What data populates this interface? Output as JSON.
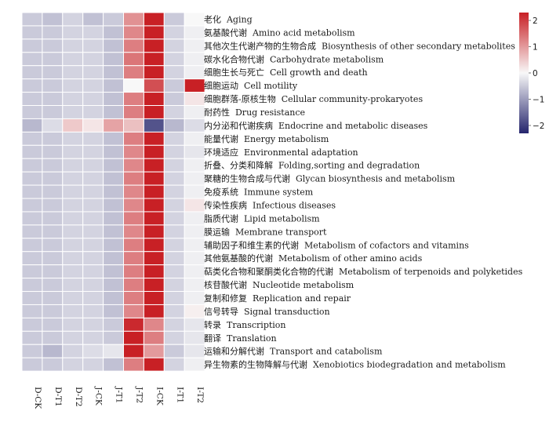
{
  "chart_data": {
    "type": "heatmap",
    "columns": [
      "D-CK",
      "D-T1",
      "D-T2",
      "J-CK",
      "J-T1",
      "J-T2",
      "I-CK",
      "I-T1",
      "I-T2"
    ],
    "rows": [
      "老化  Aging",
      "氨基酸代谢  Amino acid metabolism",
      "其他次生代谢产物的生物合成  Biosynthesis of other secondary metabolites",
      "碳水化合物代谢  Carbohydrate metabolism",
      "细胞生长与死亡  Cell growth and death",
      "细胞运动  Cell motility",
      "细胞群落-原核生物  Cellular community-prokaryotes",
      "耐药性  Drug resistance",
      "内分泌和代谢疾病  Endocrine and metabolic diseases",
      "能量代谢  Energy metabolism",
      "环境适应  Environmental adaptation",
      "折叠、分类和降解  Folding,sorting and degradation",
      "聚糖的生物合成与代谢  Glycan biosynthesis and metabolism",
      "免疫系统  Immune system",
      "传染性疾病  Infectious diseases",
      "脂质代谢  Lipid metabolism",
      "膜运输  Membrane transport",
      "辅助因子和维生素的代谢  Metabolism of cofactors and vitamins",
      "其他氨基酸的代谢  Metabolism of other amino acids",
      "萜类化合物和聚酮类化合物的代谢  Metabolism of terpenoids and polyketides",
      "核苷酸代谢  Nucleotide metabolism",
      "复制和修复  Replication and repair",
      "信号转导  Signal transduction",
      "转录  Transcription",
      "翻译  Translation",
      "运输和分解代谢  Transport and catabolism",
      "异生物素的生物降解与代谢  Xenobiotics biodegradation and metabolism"
    ],
    "values": [
      [
        -0.5,
        -0.6,
        -0.4,
        -0.6,
        -0.5,
        1.1,
        2.5,
        -0.5,
        0.0
      ],
      [
        -0.5,
        -0.5,
        -0.4,
        -0.4,
        -0.6,
        1.2,
        2.5,
        -0.4,
        -0.1
      ],
      [
        -0.5,
        -0.5,
        -0.4,
        -0.4,
        -0.6,
        1.3,
        2.5,
        -0.4,
        -0.1
      ],
      [
        -0.5,
        -0.5,
        -0.4,
        -0.4,
        -0.6,
        1.4,
        2.5,
        -0.4,
        -0.1
      ],
      [
        -0.5,
        -0.5,
        -0.4,
        -0.4,
        -0.6,
        1.3,
        2.5,
        -0.4,
        -0.1
      ],
      [
        -0.5,
        -0.5,
        -0.4,
        -0.4,
        -0.6,
        0.0,
        1.8,
        -0.5,
        2.4
      ],
      [
        -0.5,
        -0.5,
        -0.4,
        -0.4,
        -0.6,
        1.3,
        2.5,
        -0.5,
        0.2
      ],
      [
        -0.5,
        -0.5,
        -0.4,
        -0.4,
        -0.6,
        1.3,
        2.5,
        -0.4,
        -0.1
      ],
      [
        -0.7,
        -0.3,
        0.5,
        0.2,
        0.9,
        0.6,
        -1.8,
        -0.7,
        -0.3
      ],
      [
        -0.5,
        -0.5,
        -0.4,
        -0.4,
        -0.6,
        1.3,
        2.5,
        -0.4,
        -0.1
      ],
      [
        -0.5,
        -0.5,
        -0.4,
        -0.4,
        -0.6,
        1.2,
        2.5,
        -0.4,
        -0.2
      ],
      [
        -0.5,
        -0.5,
        -0.4,
        -0.4,
        -0.6,
        1.2,
        2.5,
        -0.4,
        -0.1
      ],
      [
        -0.5,
        -0.5,
        -0.4,
        -0.4,
        -0.6,
        1.3,
        2.5,
        -0.4,
        -0.1
      ],
      [
        -0.5,
        -0.5,
        -0.4,
        -0.4,
        -0.6,
        1.2,
        2.5,
        -0.4,
        -0.1
      ],
      [
        -0.5,
        -0.5,
        -0.4,
        -0.4,
        -0.6,
        1.2,
        2.5,
        -0.4,
        0.2
      ],
      [
        -0.5,
        -0.5,
        -0.4,
        -0.4,
        -0.6,
        1.3,
        2.5,
        -0.4,
        -0.1
      ],
      [
        -0.5,
        -0.5,
        -0.4,
        -0.4,
        -0.6,
        1.2,
        2.5,
        -0.4,
        -0.1
      ],
      [
        -0.5,
        -0.5,
        -0.4,
        -0.4,
        -0.6,
        1.3,
        2.5,
        -0.4,
        -0.1
      ],
      [
        -0.5,
        -0.5,
        -0.4,
        -0.4,
        -0.6,
        1.3,
        2.5,
        -0.4,
        -0.1
      ],
      [
        -0.5,
        -0.5,
        -0.4,
        -0.4,
        -0.6,
        1.3,
        2.5,
        -0.4,
        -0.1
      ],
      [
        -0.5,
        -0.5,
        -0.4,
        -0.4,
        -0.6,
        1.3,
        2.5,
        -0.4,
        -0.1
      ],
      [
        -0.5,
        -0.5,
        -0.4,
        -0.4,
        -0.6,
        1.3,
        2.5,
        -0.4,
        -0.1
      ],
      [
        -0.5,
        -0.5,
        -0.4,
        -0.4,
        -0.6,
        1.2,
        2.5,
        -0.4,
        0.1
      ],
      [
        -0.5,
        -0.5,
        -0.4,
        -0.4,
        -0.5,
        2.2,
        1.2,
        -0.4,
        -0.2
      ],
      [
        -0.5,
        -0.5,
        -0.4,
        -0.4,
        -0.5,
        2.3,
        1.3,
        -0.4,
        -0.2
      ],
      [
        -0.5,
        -0.7,
        -0.4,
        -0.3,
        -0.2,
        2.3,
        1.0,
        -0.5,
        -0.2
      ],
      [
        -0.5,
        -0.5,
        -0.4,
        -0.4,
        -0.6,
        1.3,
        2.5,
        -0.4,
        -0.1
      ]
    ],
    "colorbar": {
      "ticks": [
        2,
        1,
        0,
        -1,
        -2
      ],
      "tick_labels": [
        "2",
        "1",
        "0",
        "−1",
        "−2"
      ],
      "range": [
        -2.3,
        2.3
      ],
      "low_color": "#25256d",
      "mid_color": "#f8f8f8",
      "high_color": "#c82025"
    }
  }
}
